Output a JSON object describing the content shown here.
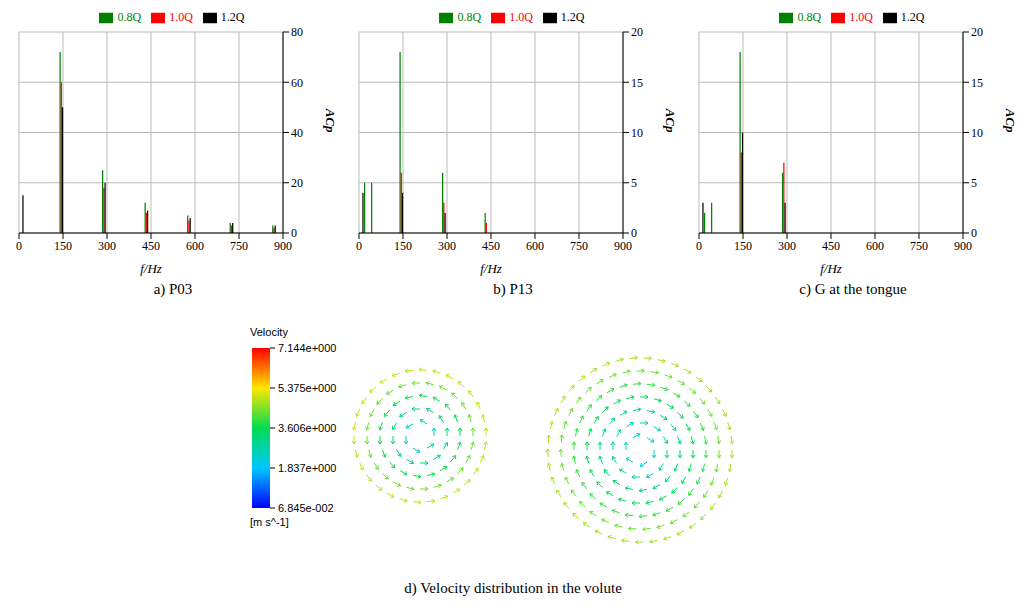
{
  "chart_data": [
    {
      "type": "bar",
      "caption": "a) P03",
      "x_label": "f/Hz",
      "y_label": "ACp",
      "x": [
        10,
        24,
        48,
        145,
        290,
        435,
        580,
        725,
        870
      ],
      "xlim": [
        0,
        900
      ],
      "xticks": [
        0,
        150,
        300,
        450,
        600,
        750,
        900
      ],
      "ylim": [
        0,
        80
      ],
      "yticks": [
        0,
        20,
        40,
        60,
        80
      ],
      "grid": true,
      "legend": "top",
      "series": [
        {
          "name": "0.8Q",
          "color": "#008000",
          "values": [
            null,
            null,
            null,
            72,
            25,
            12,
            7,
            4,
            3
          ]
        },
        {
          "name": "1.0Q",
          "color": "#ff0000",
          "values": [
            null,
            null,
            null,
            60,
            18,
            8,
            5,
            3,
            2
          ]
        },
        {
          "name": "1.2Q",
          "color": "#000000",
          "values": [
            15,
            null,
            null,
            50,
            20,
            9,
            6,
            4,
            3
          ]
        }
      ]
    },
    {
      "type": "bar",
      "caption": "b) P13",
      "x_label": "f/Hz",
      "y_label": "ACp",
      "x": [
        10,
        24,
        48,
        145,
        290,
        435
      ],
      "xlim": [
        0,
        900
      ],
      "xticks": [
        0,
        150,
        300,
        450,
        600,
        750,
        900
      ],
      "ylim": [
        0,
        20
      ],
      "yticks": [
        0,
        5,
        10,
        15,
        20
      ],
      "grid": true,
      "legend": "top",
      "series": [
        {
          "name": "0.8Q",
          "color": "#008000",
          "values": [
            null,
            5,
            5,
            18,
            6,
            2
          ]
        },
        {
          "name": "1.0Q",
          "color": "#ff0000",
          "values": [
            null,
            null,
            null,
            6,
            3,
            1
          ]
        },
        {
          "name": "1.2Q",
          "color": "#000000",
          "values": [
            4,
            null,
            null,
            4,
            2,
            null
          ]
        }
      ]
    },
    {
      "type": "bar",
      "caption": "c) G at the tongue",
      "x_label": "f/Hz",
      "y_label": "ACp",
      "x": [
        10,
        24,
        48,
        145,
        290
      ],
      "xlim": [
        0,
        900
      ],
      "xticks": [
        0,
        150,
        300,
        450,
        600,
        750,
        900
      ],
      "ylim": [
        0,
        20
      ],
      "yticks": [
        0,
        5,
        10,
        15,
        20
      ],
      "grid": true,
      "legend": "top",
      "series": [
        {
          "name": "0.8Q",
          "color": "#008000",
          "values": [
            null,
            2,
            3,
            18,
            6
          ]
        },
        {
          "name": "1.0Q",
          "color": "#ff0000",
          "values": [
            null,
            null,
            null,
            8,
            7
          ]
        },
        {
          "name": "1.2Q",
          "color": "#000000",
          "values": [
            3,
            null,
            null,
            10,
            3
          ]
        }
      ]
    }
  ],
  "figure_panel": {
    "caption": "d) Velocity distribution in the volute",
    "colorbar": {
      "title": "Velocity",
      "unit": "[m s^-1]",
      "range": [
        0.06845,
        7.144
      ],
      "ticks": [
        {
          "value": 7.144,
          "label": "7.144e+000"
        },
        {
          "value": 5.375,
          "label": "5.375e+000"
        },
        {
          "value": 3.606,
          "label": "3.606e+000"
        },
        {
          "value": 1.837,
          "label": "1.837e+000"
        },
        {
          "value": 0.06845,
          "label": "6.845e-002"
        }
      ]
    }
  }
}
